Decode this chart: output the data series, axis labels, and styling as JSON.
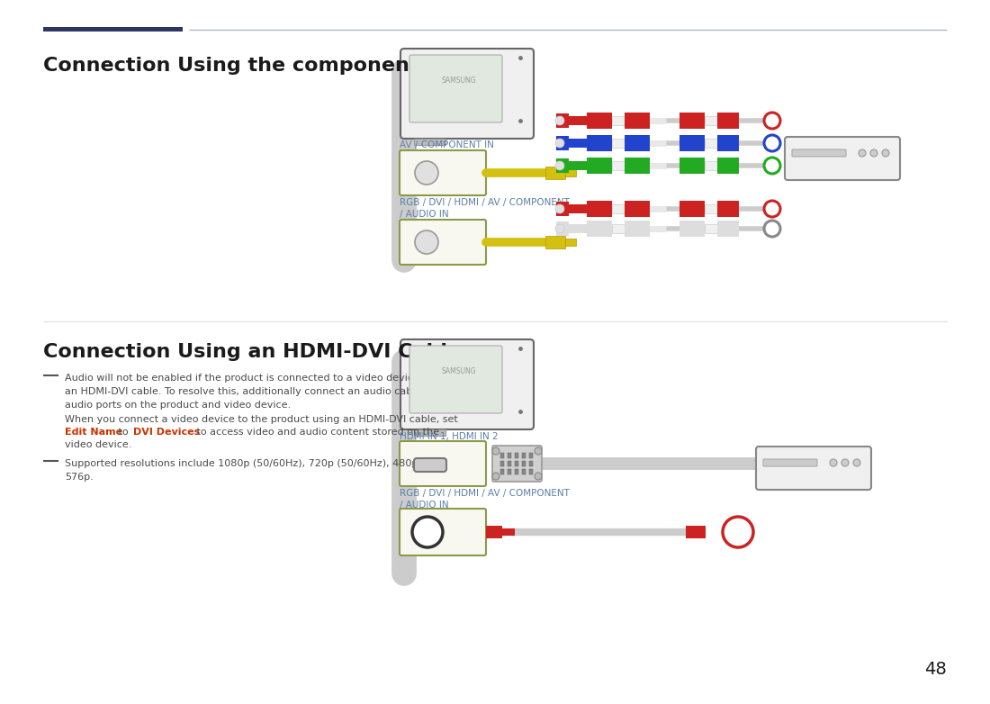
{
  "bg_color": "#ffffff",
  "title1": "Connection Using the component Cable",
  "title2": "Connection Using an HDMI-DVI Cable",
  "header_line_dark": "#2d3561",
  "header_line_light": "#b0b8c8",
  "title_color": "#1a1a1a",
  "label_color": "#5b7fa6",
  "body_text_color": "#4a4a4a",
  "red_text_color": "#cc3300",
  "label1_1": "AV / COMPONENT IN",
  "label1_2": "RGB / DVI / HDMI / AV / COMPONENT\n/ AUDIO IN",
  "label2_1": "HDMI IN 1, HDMI IN 2",
  "label2_2": "RGB / DVI / HDMI / AV / COMPONENT\n/ AUDIO IN",
  "bullet_text1": "Audio will not be enabled if the product is connected to a video device using\nan HDMI-DVI cable. To resolve this, additionally connect an audio cable to the\naudio ports on the product and video device.",
  "bullet_text3": "Supported resolutions include 1080p (50/60Hz), 720p (50/60Hz), 480p, and\n576p.",
  "page_number": "48",
  "cable_gray": "#cccccc",
  "cable_yellow": "#d4c010",
  "rca_red": "#cc2222",
  "rca_blue": "#2244cc",
  "rca_green": "#22aa22",
  "rca_white": "#dddddd",
  "port_border": "#8a9a4a",
  "port_bg": "#f8f8f0",
  "tv_frame": "#666666",
  "tv_bg": "#f0f0f0",
  "tv_screen": "#e0e8e0",
  "device_frame": "#888888",
  "device_bg": "#f0f0f0"
}
